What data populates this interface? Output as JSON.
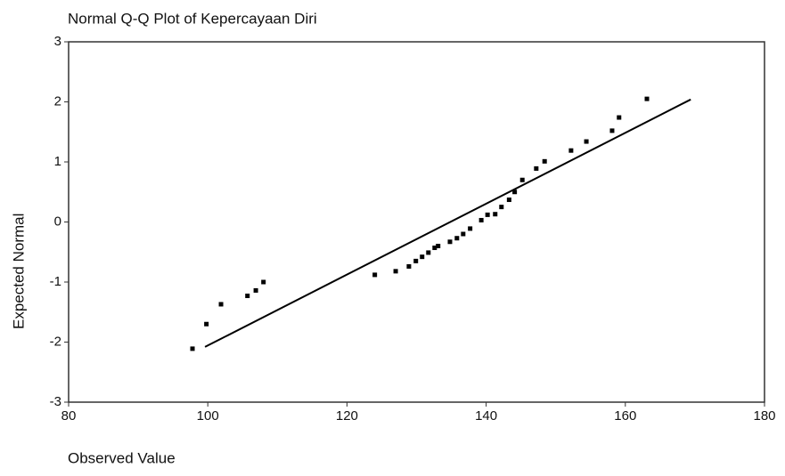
{
  "chart_data": {
    "type": "scatter",
    "title": "Normal Q-Q Plot of Kepercayaan Diri",
    "x_label": "Observed Value",
    "y_label": "Expected Normal",
    "x": [
      97.8,
      99.8,
      101.9,
      105.7,
      106.9,
      108.0,
      124.0,
      127.0,
      128.9,
      129.9,
      130.8,
      131.7,
      132.6,
      133.1,
      134.8,
      135.8,
      136.7,
      137.7,
      139.3,
      140.2,
      141.3,
      142.2,
      143.3,
      144.1,
      145.2,
      147.2,
      148.4,
      152.2,
      154.4,
      158.1,
      159.1,
      163.1
    ],
    "values": [
      -2.11,
      -1.7,
      -1.37,
      -1.23,
      -1.14,
      -1.0,
      -0.88,
      -0.82,
      -0.74,
      -0.65,
      -0.58,
      -0.51,
      -0.43,
      -0.4,
      -0.33,
      -0.27,
      -0.2,
      -0.11,
      0.03,
      0.12,
      0.13,
      0.25,
      0.37,
      0.5,
      0.7,
      0.89,
      1.01,
      1.19,
      1.34,
      1.52,
      1.74,
      2.05
    ],
    "color": "#000000",
    "reference_line": {
      "x": [
        99.6,
        169.4
      ],
      "values": [
        -2.08,
        2.04
      ]
    },
    "xlim": [
      80,
      180
    ],
    "xticks": [
      80,
      100,
      120,
      140,
      160,
      180
    ],
    "ylim": [
      -3,
      3
    ],
    "yticks": [
      -3,
      -2,
      -1,
      0,
      1,
      2,
      3
    ]
  }
}
